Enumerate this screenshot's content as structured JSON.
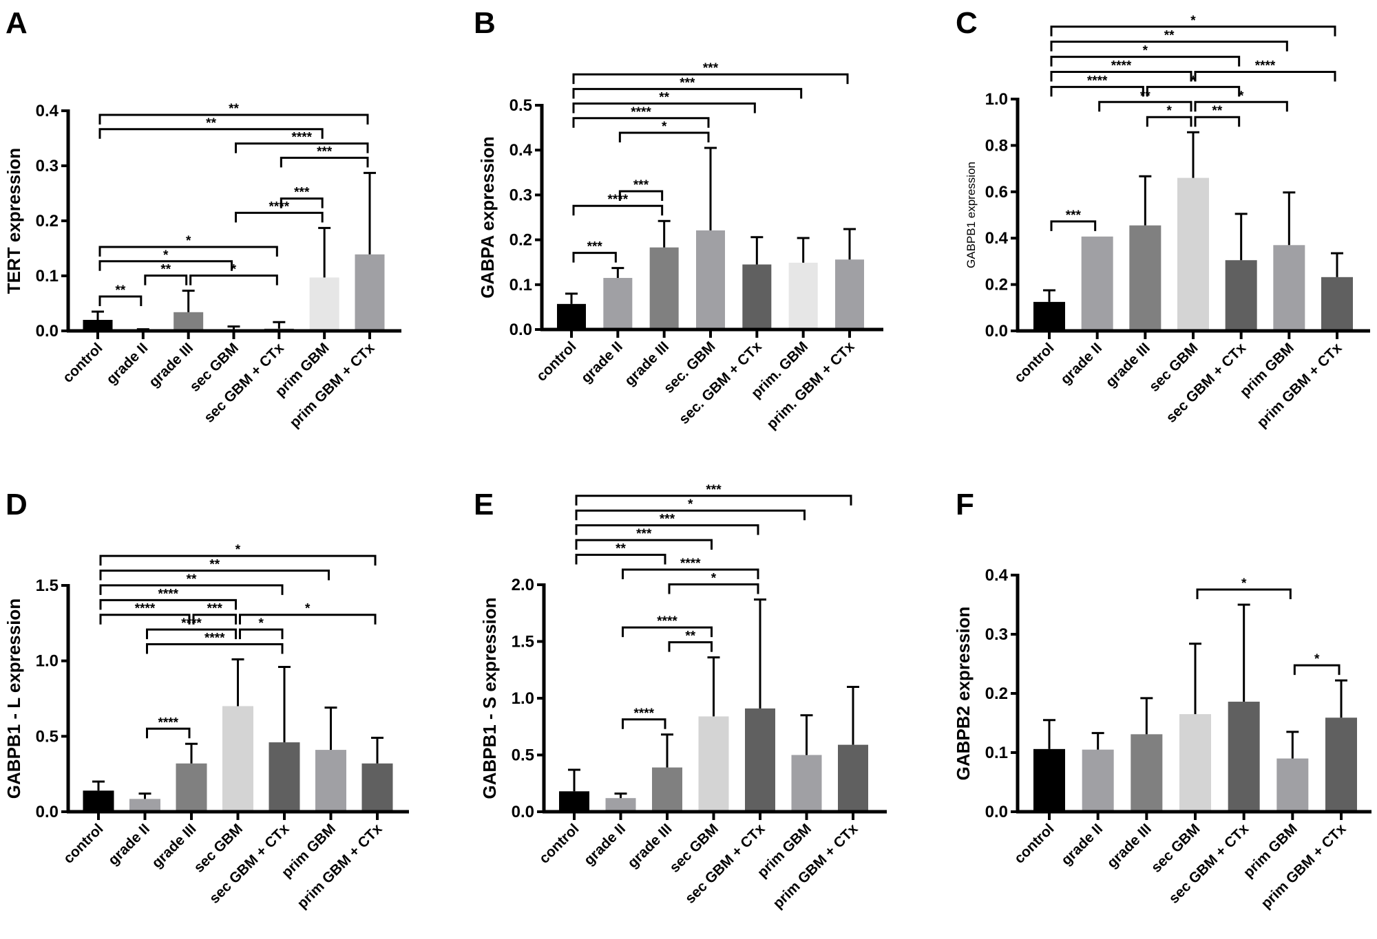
{
  "chart_data": [
    {
      "panel": "A",
      "type": "bar",
      "ylabel": "TERT expression",
      "ylim": [
        0,
        0.4
      ],
      "yticks": [
        0,
        0.1,
        0.2,
        0.3,
        0.4
      ],
      "ytick_labels": [
        "0.0",
        "0.1",
        "0.2",
        "0.3",
        "0.4"
      ],
      "categories": [
        "control",
        "grade II",
        "grade III",
        "sec GBM",
        "sec GBM + CTx",
        "prim GBM",
        "prim GBM + CTx"
      ],
      "values": [
        0.02,
        0.002,
        0.034,
        0.001,
        0.004,
        0.097,
        0.139
      ],
      "errors": [
        0.015,
        0.001,
        0.039,
        0.007,
        0.012,
        0.09,
        0.148
      ],
      "colors": [
        "#000000",
        "#a0a0a4",
        "#808080",
        "#a0a0a4",
        "#606060",
        "#e6e6e6",
        "#a0a0a4"
      ],
      "comparisons": [
        {
          "from": 0,
          "to": 1,
          "label": "**"
        },
        {
          "from": 1,
          "to": 2,
          "label": "**"
        },
        {
          "from": 2,
          "to": 4,
          "label": "*"
        },
        {
          "from": 0,
          "to": 3,
          "label": "*"
        },
        {
          "from": 0,
          "to": 4,
          "label": "*"
        },
        {
          "from": 3,
          "to": 5,
          "label": "****"
        },
        {
          "from": 4,
          "to": 5,
          "label": "***"
        },
        {
          "from": 4,
          "to": 6,
          "label": "***"
        },
        {
          "from": 3,
          "to": 6,
          "label": "****"
        },
        {
          "from": 0,
          "to": 5,
          "label": "**"
        },
        {
          "from": 0,
          "to": 6,
          "label": "**"
        }
      ]
    },
    {
      "panel": "B",
      "type": "bar",
      "ylabel": "GABPA expression",
      "ylim": [
        0,
        0.5
      ],
      "yticks": [
        0,
        0.1,
        0.2,
        0.3,
        0.4,
        0.5
      ],
      "ytick_labels": [
        "0.0",
        "0.1",
        "0.2",
        "0.3",
        "0.4",
        "0.5"
      ],
      "categories": [
        "control",
        "grade II",
        "grade III",
        "sec. GBM",
        "sec. GBM + CTx",
        "prim. GBM",
        "prim. GBM + CTx"
      ],
      "values": [
        0.057,
        0.115,
        0.183,
        0.221,
        0.145,
        0.149,
        0.156
      ],
      "errors": [
        0.023,
        0.022,
        0.059,
        0.184,
        0.061,
        0.055,
        0.068
      ],
      "colors": [
        "#000000",
        "#a0a0a4",
        "#808080",
        "#a0a0a4",
        "#606060",
        "#e6e6e6",
        "#a0a0a4"
      ],
      "comparisons": [
        {
          "from": 0,
          "to": 1,
          "label": "***"
        },
        {
          "from": 0,
          "to": 2,
          "label": "****"
        },
        {
          "from": 1,
          "to": 2,
          "label": "***"
        },
        {
          "from": 1,
          "to": 3,
          "label": "*"
        },
        {
          "from": 0,
          "to": 3,
          "label": "****"
        },
        {
          "from": 0,
          "to": 4,
          "label": "**"
        },
        {
          "from": 0,
          "to": 5,
          "label": "***"
        },
        {
          "from": 0,
          "to": 6,
          "label": "***"
        }
      ]
    },
    {
      "panel": "C",
      "type": "bar",
      "ylabel": "GABPB1 expression",
      "ylim": [
        0,
        1.0
      ],
      "yticks": [
        0,
        0.2,
        0.4,
        0.6,
        0.8,
        1.0
      ],
      "ytick_labels": [
        "0.0",
        "0.2",
        "0.4",
        "0.6",
        "0.8",
        "1.0"
      ],
      "categories": [
        "control",
        "grade II",
        "grade III",
        "sec GBM",
        "sec GBM + CTx",
        "prim GBM",
        "prim GBM + CTx"
      ],
      "values": [
        0.125,
        0.407,
        0.455,
        0.66,
        0.305,
        0.37,
        0.232
      ],
      "errors": [
        0.05,
        0,
        0.212,
        0.197,
        0.2,
        0.227,
        0.103
      ],
      "colors": [
        "#000000",
        "#a0a0a4",
        "#808080",
        "#d4d4d4",
        "#606060",
        "#a0a0a4",
        "#606060"
      ],
      "comparisons": [
        {
          "from": 0,
          "to": 1,
          "label": "***"
        },
        {
          "from": 2,
          "to": 3,
          "label": "*"
        },
        {
          "from": 3,
          "to": 4,
          "label": "**"
        },
        {
          "from": 1,
          "to": 3,
          "label": "**"
        },
        {
          "from": 3,
          "to": 5,
          "label": "*"
        },
        {
          "from": 0,
          "to": 2,
          "label": "****"
        },
        {
          "from": 2,
          "to": 4,
          "label": "*"
        },
        {
          "from": 0,
          "to": 3,
          "label": "****"
        },
        {
          "from": 3,
          "to": 6,
          "label": "****"
        },
        {
          "from": 0,
          "to": 4,
          "label": "*"
        },
        {
          "from": 0,
          "to": 5,
          "label": "**"
        },
        {
          "from": 0,
          "to": 6,
          "label": "*"
        }
      ]
    },
    {
      "panel": "D",
      "type": "bar",
      "ylabel": "GABPB1 - L expression",
      "ylim": [
        0,
        1.5
      ],
      "yticks": [
        0,
        0.5,
        1.0,
        1.5
      ],
      "ytick_labels": [
        "0.0",
        "0.5",
        "1.0",
        "1.5"
      ],
      "categories": [
        "control",
        "grade II",
        "grade III",
        "sec GBM",
        "sec GBM + CTx",
        "prim GBM",
        "prim GBM + CTx"
      ],
      "values": [
        0.14,
        0.085,
        0.32,
        0.7,
        0.46,
        0.41,
        0.32
      ],
      "errors": [
        0.06,
        0.035,
        0.13,
        0.31,
        0.5,
        0.28,
        0.17
      ],
      "colors": [
        "#000000",
        "#a0a0a4",
        "#808080",
        "#d4d4d4",
        "#606060",
        "#a0a0a4",
        "#606060"
      ],
      "comparisons": [
        {
          "from": 1,
          "to": 2,
          "label": "****"
        },
        {
          "from": 1,
          "to": 4,
          "label": "****"
        },
        {
          "from": 1,
          "to": 3,
          "label": "****"
        },
        {
          "from": 3,
          "to": 4,
          "label": "*"
        },
        {
          "from": 2,
          "to": 3,
          "label": "***"
        },
        {
          "from": 3,
          "to": 6,
          "label": "*"
        },
        {
          "from": 0,
          "to": 2,
          "label": "****"
        },
        {
          "from": 0,
          "to": 3,
          "label": "****"
        },
        {
          "from": 0,
          "to": 4,
          "label": "**"
        },
        {
          "from": 0,
          "to": 5,
          "label": "**"
        },
        {
          "from": 0,
          "to": 6,
          "label": "*"
        }
      ]
    },
    {
      "panel": "E",
      "type": "bar",
      "ylabel": "GABPB1 - S expression",
      "ylim": [
        0,
        2.0
      ],
      "yticks": [
        0,
        0.5,
        1.0,
        1.5,
        2.0
      ],
      "ytick_labels": [
        "0.0",
        "0.5",
        "1.0",
        "1.5",
        "2.0"
      ],
      "categories": [
        "control",
        "grade II",
        "grade III",
        "sec GBM",
        "sec GBM + CTx",
        "prim GBM",
        "prim GBM + CTx"
      ],
      "values": [
        0.18,
        0.12,
        0.39,
        0.84,
        0.91,
        0.5,
        0.59
      ],
      "errors": [
        0.19,
        0.04,
        0.29,
        0.52,
        0.96,
        0.35,
        0.51
      ],
      "colors": [
        "#000000",
        "#a0a0a4",
        "#808080",
        "#d4d4d4",
        "#606060",
        "#a0a0a4",
        "#606060"
      ],
      "comparisons": [
        {
          "from": 1,
          "to": 2,
          "label": "****"
        },
        {
          "from": 2,
          "to": 3,
          "label": "**"
        },
        {
          "from": 1,
          "to": 3,
          "label": "****"
        },
        {
          "from": 2,
          "to": 4,
          "label": "*"
        },
        {
          "from": 1,
          "to": 4,
          "label": "****"
        },
        {
          "from": 0,
          "to": 2,
          "label": "**"
        },
        {
          "from": 0,
          "to": 3,
          "label": "***"
        },
        {
          "from": 0,
          "to": 4,
          "label": "***"
        },
        {
          "from": 0,
          "to": 5,
          "label": "*"
        },
        {
          "from": 0,
          "to": 6,
          "label": "***"
        }
      ]
    },
    {
      "panel": "F",
      "type": "bar",
      "ylabel": "GABPB2 expression",
      "ylim": [
        0,
        0.4
      ],
      "yticks": [
        0,
        0.1,
        0.2,
        0.3,
        0.4
      ],
      "ytick_labels": [
        "0.0",
        "0.1",
        "0.2",
        "0.3",
        "0.4"
      ],
      "categories": [
        "control",
        "grade II",
        "grade III",
        "sec GBM",
        "sec GBM + CTx",
        "prim GBM",
        "prim GBM + CTx"
      ],
      "values": [
        0.106,
        0.105,
        0.131,
        0.165,
        0.186,
        0.09,
        0.159
      ],
      "errors": [
        0.049,
        0.028,
        0.061,
        0.119,
        0.164,
        0.045,
        0.063
      ],
      "colors": [
        "#000000",
        "#a0a0a4",
        "#808080",
        "#d4d4d4",
        "#606060",
        "#a0a0a4",
        "#606060"
      ],
      "comparisons": [
        {
          "from": 3,
          "to": 5,
          "label": "*"
        },
        {
          "from": 5,
          "to": 6,
          "label": "*"
        }
      ]
    }
  ]
}
